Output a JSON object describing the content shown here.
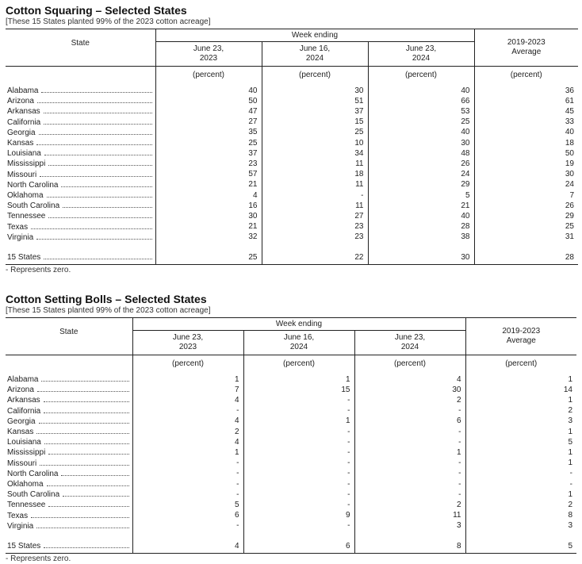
{
  "common": {
    "subtitle": "[These 15 States planted 99% of the 2023 cotton acreage]",
    "state_header": "State",
    "week_ending": "Week ending",
    "columns": [
      "June 23,\n2023",
      "June 16,\n2024",
      "June 23,\n2024",
      "2019-2023\nAverage"
    ],
    "unit": "(percent)",
    "footnote": "- Represents zero."
  },
  "tables": [
    {
      "title": "Cotton Squaring – Selected States",
      "rows": [
        [
          "Alabama",
          "40",
          "30",
          "40",
          "36"
        ],
        [
          "Arizona",
          "50",
          "51",
          "66",
          "61"
        ],
        [
          "Arkansas",
          "47",
          "37",
          "53",
          "45"
        ],
        [
          "California",
          "27",
          "15",
          "25",
          "33"
        ],
        [
          "Georgia",
          "35",
          "25",
          "40",
          "40"
        ],
        [
          "Kansas",
          "25",
          "10",
          "30",
          "18"
        ],
        [
          "Louisiana",
          "37",
          "34",
          "48",
          "50"
        ],
        [
          "Mississippi",
          "23",
          "11",
          "26",
          "19"
        ],
        [
          "Missouri",
          "57",
          "18",
          "24",
          "30"
        ],
        [
          "North Carolina",
          "21",
          "11",
          "29",
          "24"
        ],
        [
          "Oklahoma",
          "4",
          "-",
          "5",
          "7"
        ],
        [
          "South Carolina",
          "16",
          "11",
          "21",
          "26"
        ],
        [
          "Tennessee",
          "30",
          "27",
          "40",
          "29"
        ],
        [
          "Texas",
          "21",
          "23",
          "28",
          "25"
        ],
        [
          "Virginia",
          "32",
          "23",
          "38",
          "31"
        ]
      ],
      "total": [
        "15 States",
        "25",
        "22",
        "30",
        "28"
      ]
    },
    {
      "title": "Cotton Setting Bolls – Selected States",
      "rows": [
        [
          "Alabama",
          "1",
          "1",
          "4",
          "1"
        ],
        [
          "Arizona",
          "7",
          "15",
          "30",
          "14"
        ],
        [
          "Arkansas",
          "4",
          "-",
          "2",
          "1"
        ],
        [
          "California",
          "-",
          "-",
          "-",
          "2"
        ],
        [
          "Georgia",
          "4",
          "1",
          "6",
          "3"
        ],
        [
          "Kansas",
          "2",
          "-",
          "-",
          "1"
        ],
        [
          "Louisiana",
          "4",
          "-",
          "-",
          "5"
        ],
        [
          "Mississippi",
          "1",
          "-",
          "1",
          "1"
        ],
        [
          "Missouri",
          "-",
          "-",
          "-",
          "1"
        ],
        [
          "North Carolina",
          "-",
          "-",
          "-",
          "-"
        ],
        [
          "Oklahoma",
          "-",
          "-",
          "-",
          "-"
        ],
        [
          "South Carolina",
          "-",
          "-",
          "-",
          "1"
        ],
        [
          "Tennessee",
          "5",
          "-",
          "2",
          "2"
        ],
        [
          "Texas",
          "6",
          "9",
          "11",
          "8"
        ],
        [
          "Virginia",
          "-",
          "-",
          "3",
          "3"
        ]
      ],
      "total": [
        "15 States",
        "4",
        "6",
        "8",
        "5"
      ]
    }
  ]
}
